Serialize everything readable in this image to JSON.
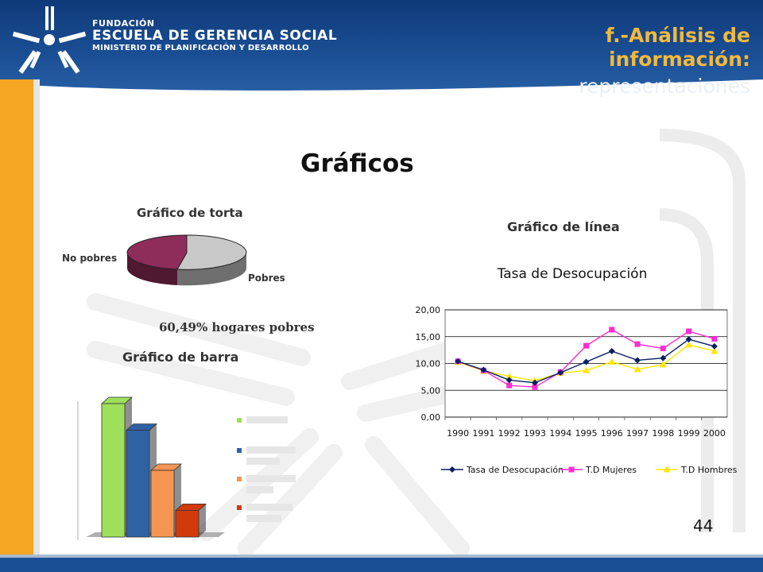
{
  "header": {
    "org_line1": "Fundación",
    "org_line2": "Escuela de Gerencia Social",
    "org_line3": "Ministerio de Planificación y Desarrollo",
    "title_line1": "f.-Análisis de",
    "title_line2": "información:",
    "title_line3": "representaciones"
  },
  "main": {
    "heading": "Gráficos",
    "pie_title": "Gráfico de torta",
    "pie_label_nopobres": "No pobres",
    "pie_label_pobres": "Pobres",
    "pie_caption": "60,49% hogares pobres",
    "bar_title": "Gráfico de barra",
    "line_section_title": "Gráfico de línea"
  },
  "page_number": "44",
  "colors": {
    "header_blue": "#1b4f95",
    "accent_orange": "#f5a623",
    "pie_nopobres": "#8e2c5a",
    "pie_pobres": "#c8c8c8"
  },
  "chart_data": [
    {
      "type": "pie",
      "title": "Gráfico de torta",
      "categories": [
        "Pobres",
        "No pobres"
      ],
      "values": [
        60.49,
        39.51
      ]
    },
    {
      "type": "bar",
      "title": "Gráfico de barra",
      "values": [
        100,
        80,
        50,
        20
      ],
      "colors": [
        "#9ee05a",
        "#2f62a3",
        "#f59553",
        "#d23a0c"
      ]
    },
    {
      "type": "line",
      "title": "Tasa de Desocupación",
      "categories": [
        "1990",
        "1991",
        "1992",
        "1993",
        "1994",
        "1995",
        "1996",
        "1997",
        "1998",
        "1999",
        "2000"
      ],
      "y_tick_labels": [
        "0,00",
        "5,00",
        "10,00",
        "15,00",
        "20,00"
      ],
      "ylim": [
        0,
        20
      ],
      "grid": true,
      "legend": "bottom",
      "series": [
        {
          "name": "Tasa de Desocupación",
          "color": "#0b1f66",
          "marker": "diamond",
          "values": [
            10.4,
            8.8,
            6.9,
            6.4,
            8.3,
            10.3,
            12.3,
            10.6,
            11.0,
            14.5,
            13.2
          ]
        },
        {
          "name": "T.D Mujeres",
          "color": "#ff2bd1",
          "marker": "square",
          "values": [
            10.4,
            8.7,
            5.9,
            5.6,
            8.4,
            13.3,
            16.3,
            13.6,
            12.8,
            16.0,
            14.6
          ]
        },
        {
          "name": "T.D Hombres",
          "color": "#ffe600",
          "marker": "triangle",
          "values": [
            10.3,
            8.6,
            7.6,
            6.8,
            8.2,
            8.7,
            10.3,
            8.9,
            9.8,
            13.5,
            12.3
          ]
        }
      ]
    }
  ]
}
